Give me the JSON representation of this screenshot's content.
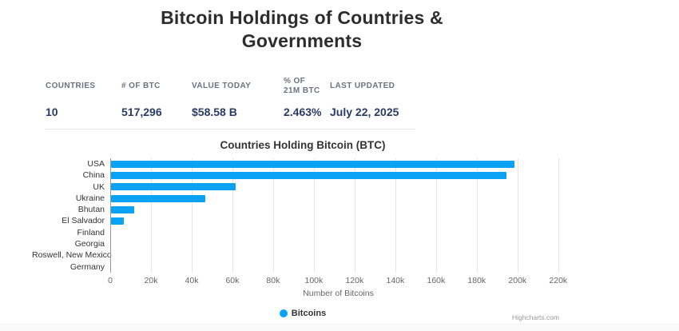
{
  "page": {
    "title": "Bitcoin Holdings of Countries & Governments"
  },
  "stats": {
    "headers": [
      "Countries",
      "# of BTC",
      "Value Today",
      "% of 21m BTC",
      "Last Updated"
    ],
    "values": [
      "10",
      "517,296",
      "$58.58 B",
      "2.463%",
      "July 22, 2025"
    ]
  },
  "chart_data": {
    "type": "bar",
    "title": "Countries Holding Bitcoin (BTC)",
    "categories": [
      "USA",
      "China",
      "UK",
      "Ukraine",
      "Bhutan",
      "El Salvador",
      "Finland",
      "Georgia",
      "Roswell, New Mexico",
      "Germany"
    ],
    "values": [
      198012,
      194000,
      61245,
      46351,
      11500,
      6200,
      0,
      0,
      0,
      0
    ],
    "series_name": "Bitcoins",
    "xlabel": "Number of Bitcoins",
    "x_ticks": [
      "0",
      "20k",
      "40k",
      "60k",
      "80k",
      "100k",
      "120k",
      "140k",
      "160k",
      "180k",
      "200k",
      "220k"
    ],
    "xlim": [
      0,
      224000
    ],
    "grid": "vertical-only",
    "legend_position": "bottom-center",
    "bar_color": "#0aa2f5"
  },
  "colors": {
    "accent_blue": "#0aa2f5",
    "value_navy": "#293a66",
    "header_gray": "#6b7280"
  },
  "credits": "Highcharts.com"
}
